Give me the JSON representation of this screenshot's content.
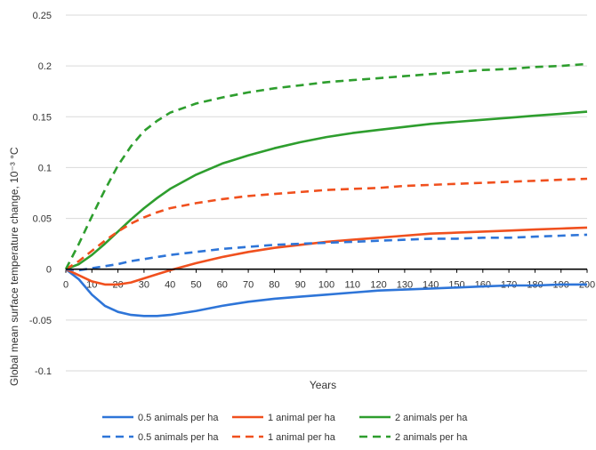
{
  "chart_data": {
    "type": "line",
    "title": "",
    "xlabel": "Years",
    "ylabel": "Global mean surface temperature change, 10⁻³ °C",
    "xlim": [
      0,
      200
    ],
    "ylim": [
      -0.1,
      0.25
    ],
    "x_ticks": [
      0,
      10,
      20,
      30,
      40,
      50,
      60,
      70,
      80,
      90,
      100,
      110,
      120,
      130,
      140,
      150,
      160,
      170,
      180,
      190,
      200
    ],
    "y_ticks": [
      -0.1,
      -0.05,
      0,
      0.05,
      0.1,
      0.15,
      0.2,
      0.25
    ],
    "y_tick_labels": [
      "-0.1",
      "-0.05",
      "0",
      "0.05",
      "0.1",
      "0.15",
      "0.2",
      "0.25"
    ],
    "grid": "horizontal",
    "legend_position": "bottom",
    "x": [
      0,
      5,
      10,
      15,
      20,
      25,
      30,
      35,
      40,
      50,
      60,
      70,
      80,
      90,
      100,
      110,
      120,
      130,
      140,
      150,
      160,
      170,
      180,
      190,
      200
    ],
    "series": [
      {
        "name": "0.5 animals per ha",
        "color": "#2E75D8",
        "dash": "solid",
        "values": [
          0,
          -0.01,
          -0.025,
          -0.036,
          -0.042,
          -0.045,
          -0.046,
          -0.046,
          -0.045,
          -0.041,
          -0.036,
          -0.032,
          -0.029,
          -0.027,
          -0.025,
          -0.023,
          -0.021,
          -0.02,
          -0.019,
          -0.018,
          -0.017,
          -0.016,
          -0.016,
          -0.015,
          -0.015
        ]
      },
      {
        "name": "1 animal per ha",
        "color": "#F0501E",
        "dash": "solid",
        "values": [
          0,
          -0.006,
          -0.012,
          -0.015,
          -0.015,
          -0.013,
          -0.009,
          -0.005,
          -0.001,
          0.006,
          0.012,
          0.017,
          0.021,
          0.024,
          0.027,
          0.029,
          0.031,
          0.033,
          0.035,
          0.036,
          0.037,
          0.038,
          0.039,
          0.04,
          0.041
        ]
      },
      {
        "name": "2 animals per ha",
        "color": "#2E9E2E",
        "dash": "solid",
        "values": [
          0,
          0.005,
          0.014,
          0.025,
          0.037,
          0.049,
          0.06,
          0.07,
          0.079,
          0.093,
          0.104,
          0.112,
          0.119,
          0.125,
          0.13,
          0.134,
          0.137,
          0.14,
          0.143,
          0.145,
          0.147,
          0.149,
          0.151,
          0.153,
          0.155
        ]
      },
      {
        "name": "0.5 animals per ha",
        "color": "#2E75D8",
        "dash": "dashed",
        "values": [
          0,
          -0.001,
          0.001,
          0.003,
          0.005,
          0.008,
          0.01,
          0.012,
          0.014,
          0.017,
          0.02,
          0.022,
          0.024,
          0.025,
          0.026,
          0.027,
          0.028,
          0.029,
          0.03,
          0.03,
          0.031,
          0.031,
          0.032,
          0.033,
          0.034
        ]
      },
      {
        "name": "1 animal per ha",
        "color": "#F0501E",
        "dash": "dashed",
        "values": [
          0,
          0.008,
          0.018,
          0.028,
          0.037,
          0.045,
          0.051,
          0.056,
          0.06,
          0.065,
          0.069,
          0.072,
          0.074,
          0.076,
          0.078,
          0.079,
          0.08,
          0.082,
          0.083,
          0.084,
          0.085,
          0.086,
          0.087,
          0.088,
          0.089
        ]
      },
      {
        "name": "2 animals per ha",
        "color": "#2E9E2E",
        "dash": "dashed",
        "values": [
          0,
          0.025,
          0.052,
          0.078,
          0.102,
          0.121,
          0.136,
          0.146,
          0.154,
          0.163,
          0.169,
          0.174,
          0.178,
          0.181,
          0.184,
          0.186,
          0.188,
          0.19,
          0.192,
          0.194,
          0.196,
          0.197,
          0.199,
          0.2,
          0.202
        ]
      }
    ]
  }
}
